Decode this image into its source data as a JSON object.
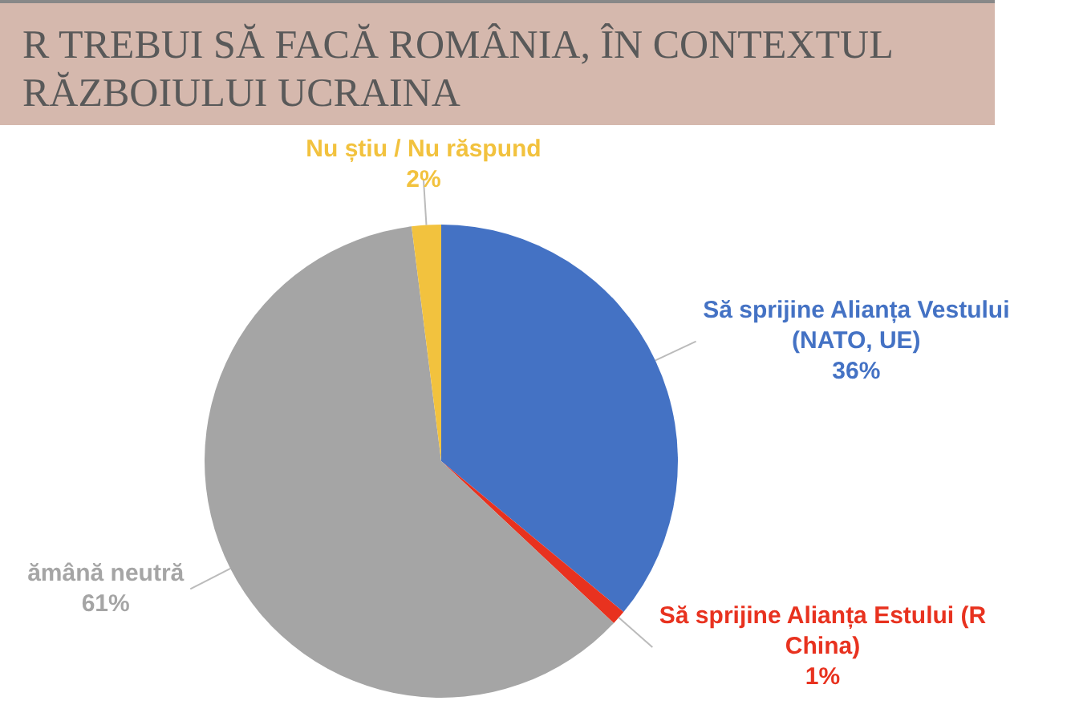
{
  "chart_data": {
    "type": "pie",
    "title": "R TREBUI SĂ FACĂ ROMÂNIA, ÎN CONTEXTUL RĂZBOIULUI UCRAINA",
    "categories": [
      "Să sprijine Alianța Vestului (NATO, UE)",
      "Să sprijine Alianța Estului (R China)",
      "ămână neutră",
      "Nu știu / Nu răspund"
    ],
    "values": [
      36,
      1,
      61,
      2
    ],
    "colors": [
      "#4472c4",
      "#e8321f",
      "#a5a5a5",
      "#f2c23e"
    ],
    "value_labels": [
      "36%",
      "1%",
      "61%",
      "2%"
    ],
    "legend": false
  }
}
